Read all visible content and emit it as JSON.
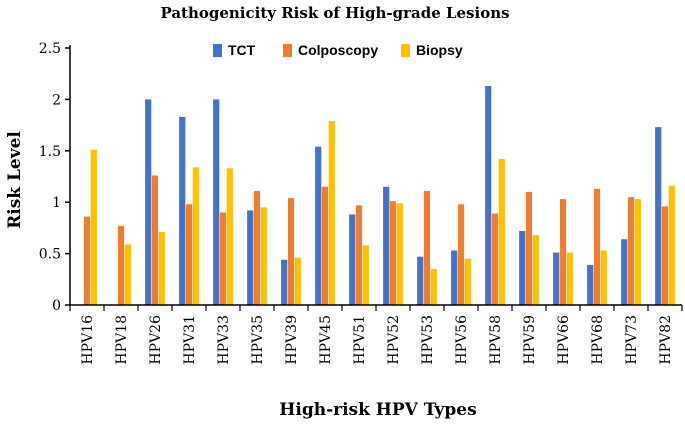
{
  "chart_data": {
    "type": "bar",
    "title": "Pathogenicity Risk of High-grade Lesions",
    "xlabel": "High-risk HPV Types",
    "ylabel": "Risk Level",
    "ylim": [
      0,
      2.5
    ],
    "yticks": [
      "0",
      "0.5",
      "1",
      "1.5",
      "2",
      "2.5"
    ],
    "grid": false,
    "legend_position": "top-center",
    "categories": [
      "HPV16",
      "HPV18",
      "HPV26",
      "HPV31",
      "HPV33",
      "HPV35",
      "HPV39",
      "HPV45",
      "HPV51",
      "HPV52",
      "HPV53",
      "HPV56",
      "HPV58",
      "HPV59",
      "HPV66",
      "HPV68",
      "HPV73",
      "HPV82"
    ],
    "series": [
      {
        "name": "TCT",
        "color": "#4472C4",
        "values": [
          0,
          0,
          2.0,
          1.83,
          2.0,
          0.92,
          0.44,
          1.54,
          0.88,
          1.15,
          0.47,
          0.53,
          2.13,
          0.72,
          0.51,
          0.39,
          0.64,
          1.73
        ]
      },
      {
        "name": "Colposcopy",
        "color": "#ED7D31",
        "values": [
          0.86,
          0.77,
          1.26,
          0.98,
          0.9,
          1.11,
          1.04,
          1.15,
          0.97,
          1.01,
          1.11,
          0.98,
          0.89,
          1.1,
          1.03,
          1.13,
          1.05,
          0.96
        ]
      },
      {
        "name": "Biopsy",
        "color": "#FFC000",
        "values": [
          1.51,
          0.59,
          0.71,
          1.34,
          1.33,
          0.95,
          0.46,
          1.79,
          0.58,
          0.99,
          0.35,
          0.45,
          1.42,
          0.68,
          0.51,
          0.53,
          1.03,
          1.16
        ]
      }
    ]
  }
}
